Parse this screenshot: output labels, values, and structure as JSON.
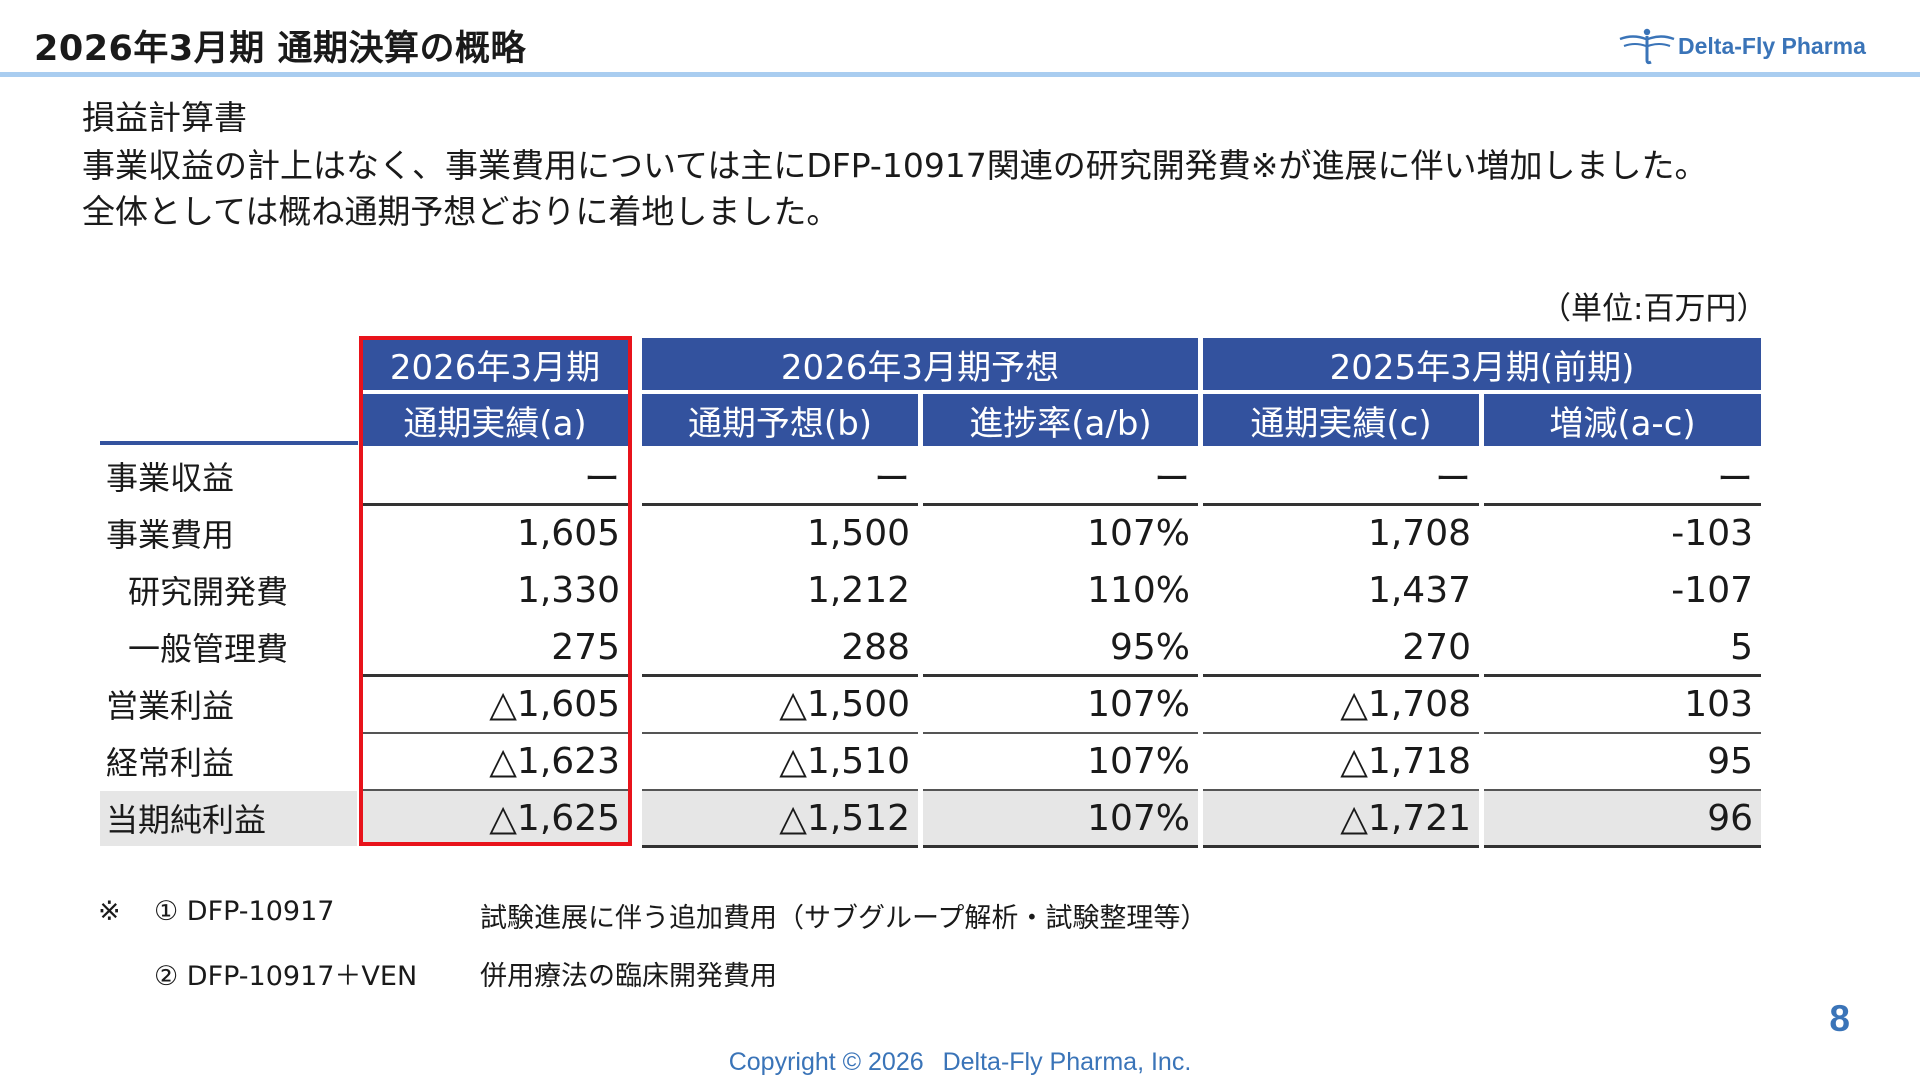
{
  "header": {
    "title": "2026年3月期 通期決算の概略",
    "logo_text": "Delta-Fly Pharma"
  },
  "section": {
    "subtitle": "損益計算書",
    "line1": "事業収益の計上はなく、事業費用については主にDFP-10917関連の研究開発費※が進展に伴い増加しました。",
    "line2": "全体としては概ね通期予想どおりに着地しました。"
  },
  "table": {
    "unit": "（単位:百万円）",
    "group_headers": [
      "2026年3月期",
      "2026年3月期予想",
      "2025年3月期(前期)"
    ],
    "sub_headers": [
      "通期実績(a)",
      "通期予想(b)",
      "進捗率(a/b)",
      "通期実績(c)",
      "増減(a-c)"
    ],
    "rows": [
      {
        "label": "事業収益",
        "values": [
          "ー",
          "ー",
          "ー",
          "ー",
          "ー"
        ]
      },
      {
        "label": "事業費用",
        "values": [
          "1,605",
          "1,500",
          "107%",
          "1,708",
          "-103"
        ]
      },
      {
        "label": "研究開発費",
        "values": [
          "1,330",
          "1,212",
          "110%",
          "1,437",
          "-107"
        ]
      },
      {
        "label": "一般管理費",
        "values": [
          "275",
          "288",
          "95%",
          "270",
          "5"
        ]
      },
      {
        "label": "営業利益",
        "values": [
          "△1,605",
          "△1,500",
          "107%",
          "△1,708",
          "103"
        ]
      },
      {
        "label": "経常利益",
        "values": [
          "△1,623",
          "△1,510",
          "107%",
          "△1,718",
          "95"
        ]
      },
      {
        "label": "当期純利益",
        "values": [
          "△1,625",
          "△1,512",
          "107%",
          "△1,721",
          "96"
        ]
      }
    ]
  },
  "notes": {
    "mark": "※",
    "items": [
      {
        "num": "① DFP-10917",
        "text": "試験進展に伴う追加費用（サブグループ解析・試験整理等）"
      },
      {
        "num": "② DFP-10917＋VEN",
        "text": "併用療法の臨床開発費用"
      }
    ]
  },
  "footer": {
    "page_number": "8",
    "copyright": "Copyright © 2026",
    "company": "Delta-Fly Pharma, Inc."
  },
  "colors": {
    "header_blue": "#33529e",
    "highlight_red": "#e8131b",
    "brand_blue": "#3a74b8",
    "total_row_shade": "#e6e6e6"
  }
}
